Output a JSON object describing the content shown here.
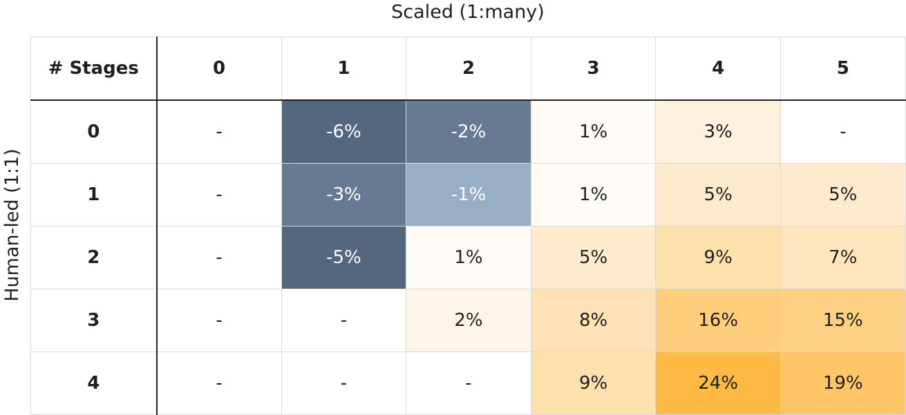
{
  "chart_data": {
    "type": "heatmap",
    "title": "",
    "xlabel": "Scaled (1:many)",
    "ylabel": "Human-led (1:1)",
    "corner_label": "# Stages",
    "x_categories": [
      "0",
      "1",
      "2",
      "3",
      "4",
      "5"
    ],
    "y_categories": [
      "0",
      "1",
      "2",
      "3",
      "4"
    ],
    "cells": [
      [
        "-",
        "-6%",
        "-2%",
        "1%",
        "3%",
        "-"
      ],
      [
        "-",
        "-3%",
        "-1%",
        "1%",
        "5%",
        "5%"
      ],
      [
        "-",
        "-5%",
        "1%",
        "5%",
        "9%",
        "7%"
      ],
      [
        "-",
        "-",
        "2%",
        "8%",
        "16%",
        "15%"
      ],
      [
        "-",
        "-",
        "-",
        "9%",
        "24%",
        "19%"
      ]
    ],
    "values": [
      [
        null,
        -6,
        -2,
        1,
        3,
        null
      ],
      [
        null,
        -3,
        -1,
        1,
        5,
        5
      ],
      [
        null,
        -5,
        1,
        5,
        9,
        7
      ],
      [
        null,
        null,
        2,
        8,
        16,
        15
      ],
      [
        null,
        null,
        null,
        9,
        24,
        19
      ]
    ],
    "unit": "%",
    "colors": {
      "negative_strong": "#53677f",
      "negative_mid": "#667a93",
      "negative_light": "#98aec4",
      "positive_light": "#fefaf5",
      "positive_max": "#ffb945",
      "empty": "#ffffff",
      "text_dark": "#1f1f1f",
      "text_light": "#ffffff"
    }
  }
}
